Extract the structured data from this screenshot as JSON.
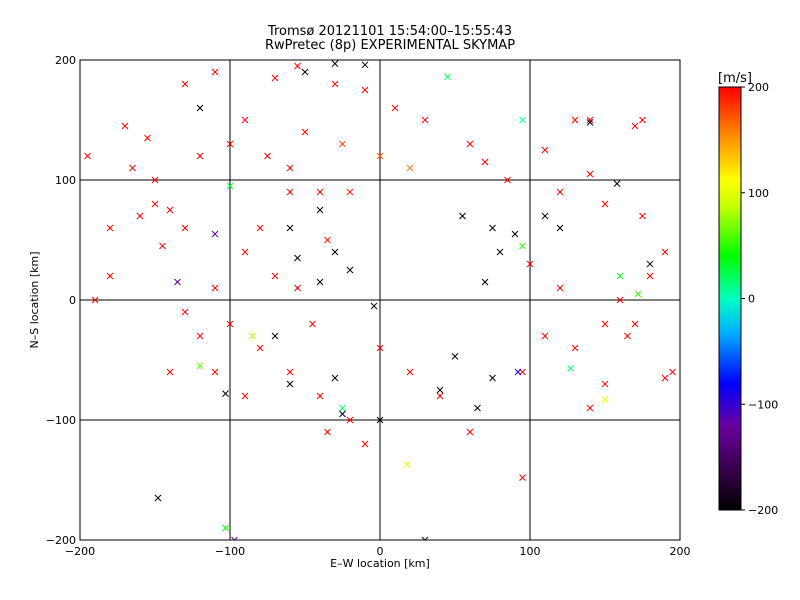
{
  "chart_data": {
    "type": "scatter",
    "title": "Tromsø 20121101 15:54:00–15:55:43",
    "subtitle": "RwPretec (8p) EXPERIMENTAL SKYMAP",
    "xlabel": "E–W location [km]",
    "ylabel": "N–S location [km]",
    "xlim": [
      -200,
      200
    ],
    "ylim": [
      -200,
      200
    ],
    "xticks": [
      -200,
      -100,
      0,
      100,
      200
    ],
    "yticks": [
      -200,
      -100,
      0,
      100,
      200
    ],
    "xtick_labels": [
      "−200",
      "−100",
      "0",
      "100",
      "200"
    ],
    "ytick_labels": [
      "−200",
      "−100",
      "0",
      "100",
      "200"
    ],
    "grid": true,
    "colorbar": {
      "label": "[m/s]",
      "min": -200,
      "max": 200,
      "ticks": [
        200,
        100,
        0,
        -100,
        -200
      ],
      "tick_labels": [
        "200",
        "100",
        "0",
        "−100",
        "−200"
      ],
      "colormap": "rainbow (black → purple → blue → cyan → green → yellow → red)"
    },
    "marker_types": [
      "dot",
      "cross"
    ],
    "points": [
      {
        "x": -150,
        "y": 100,
        "v": 200,
        "m": "x"
      },
      {
        "x": -170,
        "y": 145,
        "v": 200,
        "m": "x"
      },
      {
        "x": -165,
        "y": 110,
        "v": 200,
        "m": "x"
      },
      {
        "x": -150,
        "y": 80,
        "v": 200,
        "m": "x"
      },
      {
        "x": -140,
        "y": 75,
        "v": 200,
        "m": "x"
      },
      {
        "x": -160,
        "y": 70,
        "v": 200,
        "m": "x"
      },
      {
        "x": -180,
        "y": 60,
        "v": 200,
        "m": "x"
      },
      {
        "x": -130,
        "y": 60,
        "v": 200,
        "m": "x"
      },
      {
        "x": -145,
        "y": 45,
        "v": 200,
        "m": "x"
      },
      {
        "x": -120,
        "y": 120,
        "v": 200,
        "m": "x"
      },
      {
        "x": -100,
        "y": 130,
        "v": 200,
        "m": "x"
      },
      {
        "x": -90,
        "y": 150,
        "v": 200,
        "m": "x"
      },
      {
        "x": -75,
        "y": 120,
        "v": 200,
        "m": "x"
      },
      {
        "x": -60,
        "y": 110,
        "v": 200,
        "m": "x"
      },
      {
        "x": -50,
        "y": 140,
        "v": 200,
        "m": "x"
      },
      {
        "x": -60,
        "y": 90,
        "v": 200,
        "m": "x"
      },
      {
        "x": -40,
        "y": 90,
        "v": 200,
        "m": "x"
      },
      {
        "x": -20,
        "y": 90,
        "v": 190,
        "m": "x"
      },
      {
        "x": -80,
        "y": 60,
        "v": 200,
        "m": "x"
      },
      {
        "x": -90,
        "y": 40,
        "v": 200,
        "m": "x"
      },
      {
        "x": -70,
        "y": 20,
        "v": 200,
        "m": "x"
      },
      {
        "x": -110,
        "y": 10,
        "v": 200,
        "m": "x"
      },
      {
        "x": -100,
        "y": -20,
        "v": 200,
        "m": "x"
      },
      {
        "x": -80,
        "y": -40,
        "v": 200,
        "m": "x"
      },
      {
        "x": -60,
        "y": -60,
        "v": 200,
        "m": "x"
      },
      {
        "x": -40,
        "y": -80,
        "v": 200,
        "m": "x"
      },
      {
        "x": -20,
        "y": -100,
        "v": 200,
        "m": "x"
      },
      {
        "x": -35,
        "y": -110,
        "v": 200,
        "m": "x"
      },
      {
        "x": -140,
        "y": -60,
        "v": 200,
        "m": "x"
      },
      {
        "x": -120,
        "y": -30,
        "v": 200,
        "m": "x"
      },
      {
        "x": -180,
        "y": 20,
        "v": 200,
        "m": "x"
      },
      {
        "x": -190,
        "y": 0,
        "v": 200,
        "m": "x"
      },
      {
        "x": -195,
        "y": 120,
        "v": 200,
        "m": "x"
      },
      {
        "x": -155,
        "y": 135,
        "v": 200,
        "m": "x"
      },
      {
        "x": -130,
        "y": 180,
        "v": 200,
        "m": "x"
      },
      {
        "x": -110,
        "y": 190,
        "v": 200,
        "m": "x"
      },
      {
        "x": -70,
        "y": 185,
        "v": 200,
        "m": "x"
      },
      {
        "x": -55,
        "y": 195,
        "v": 200,
        "m": "x"
      },
      {
        "x": -30,
        "y": 180,
        "v": 200,
        "m": "x"
      },
      {
        "x": -10,
        "y": 175,
        "v": 200,
        "m": "x"
      },
      {
        "x": 10,
        "y": 160,
        "v": 200,
        "m": "x"
      },
      {
        "x": 30,
        "y": 150,
        "v": 200,
        "m": "x"
      },
      {
        "x": -25,
        "y": 130,
        "v": 180,
        "m": "x"
      },
      {
        "x": 0,
        "y": 120,
        "v": 170,
        "m": "x"
      },
      {
        "x": 20,
        "y": 110,
        "v": 160,
        "m": "x"
      },
      {
        "x": 60,
        "y": 130,
        "v": 200,
        "m": "x"
      },
      {
        "x": 70,
        "y": 115,
        "v": 200,
        "m": "x"
      },
      {
        "x": 85,
        "y": 100,
        "v": 200,
        "m": "x"
      },
      {
        "x": 110,
        "y": 125,
        "v": 200,
        "m": "x"
      },
      {
        "x": 130,
        "y": 150,
        "v": 200,
        "m": "x"
      },
      {
        "x": 140,
        "y": 150,
        "v": 200,
        "m": "x"
      },
      {
        "x": 170,
        "y": 145,
        "v": 200,
        "m": "x"
      },
      {
        "x": 175,
        "y": 150,
        "v": 200,
        "m": "x"
      },
      {
        "x": 140,
        "y": 105,
        "v": 200,
        "m": "x"
      },
      {
        "x": 120,
        "y": 90,
        "v": 200,
        "m": "x"
      },
      {
        "x": 150,
        "y": 80,
        "v": 200,
        "m": "x"
      },
      {
        "x": 175,
        "y": 70,
        "v": 200,
        "m": "x"
      },
      {
        "x": 190,
        "y": 40,
        "v": 200,
        "m": "x"
      },
      {
        "x": 180,
        "y": 20,
        "v": 200,
        "m": "x"
      },
      {
        "x": 160,
        "y": 0,
        "v": 200,
        "m": "x"
      },
      {
        "x": 170,
        "y": -20,
        "v": 200,
        "m": "x"
      },
      {
        "x": 165,
        "y": -30,
        "v": 200,
        "m": "x"
      },
      {
        "x": 150,
        "y": -20,
        "v": 200,
        "m": "x"
      },
      {
        "x": 195,
        "y": -60,
        "v": 200,
        "m": "x"
      },
      {
        "x": 190,
        "y": -65,
        "v": 200,
        "m": "x"
      },
      {
        "x": 150,
        "y": -70,
        "v": 200,
        "m": "x"
      },
      {
        "x": 140,
        "y": -90,
        "v": 200,
        "m": "x"
      },
      {
        "x": 130,
        "y": -40,
        "v": 200,
        "m": "x"
      },
      {
        "x": 110,
        "y": -30,
        "v": 200,
        "m": "x"
      },
      {
        "x": 120,
        "y": 10,
        "v": 200,
        "m": "x"
      },
      {
        "x": 100,
        "y": 30,
        "v": 200,
        "m": "x"
      },
      {
        "x": 95,
        "y": -60,
        "v": 200,
        "m": "x"
      },
      {
        "x": 95,
        "y": -148,
        "v": 200,
        "m": "x"
      },
      {
        "x": 60,
        "y": -110,
        "v": 200,
        "m": "x"
      },
      {
        "x": 40,
        "y": -80,
        "v": 200,
        "m": "x"
      },
      {
        "x": 20,
        "y": -60,
        "v": 200,
        "m": "x"
      },
      {
        "x": 0,
        "y": -40,
        "v": 200,
        "m": "x"
      },
      {
        "x": -10,
        "y": -120,
        "v": 200,
        "m": "x"
      },
      {
        "x": -90,
        "y": -80,
        "v": 200,
        "m": "x"
      },
      {
        "x": -110,
        "y": -60,
        "v": 200,
        "m": "x"
      },
      {
        "x": -130,
        "y": -10,
        "v": 200,
        "m": "x"
      },
      {
        "x": -45,
        "y": -20,
        "v": 200,
        "m": "x"
      },
      {
        "x": -55,
        "y": 10,
        "v": 200,
        "m": "x"
      },
      {
        "x": -35,
        "y": 50,
        "v": 190,
        "m": "x"
      },
      {
        "x": -148,
        "y": -165,
        "v": -200,
        "m": "x"
      },
      {
        "x": -103,
        "y": -78,
        "v": -200,
        "m": "x"
      },
      {
        "x": -97,
        "y": -200,
        "v": -120,
        "m": "x"
      },
      {
        "x": -103,
        "y": -190,
        "v": 40,
        "m": "x"
      },
      {
        "x": 30,
        "y": -200,
        "v": -190,
        "m": "x"
      },
      {
        "x": -30,
        "y": 197,
        "v": -190,
        "m": "x"
      },
      {
        "x": -10,
        "y": 196,
        "v": -200,
        "m": "x"
      },
      {
        "x": -50,
        "y": 190,
        "v": -200,
        "m": "x"
      },
      {
        "x": 45,
        "y": 186,
        "v": 20,
        "m": "x"
      },
      {
        "x": -110,
        "y": 55,
        "v": -130,
        "m": "x"
      },
      {
        "x": -135,
        "y": 15,
        "v": -130,
        "m": "x"
      },
      {
        "x": -100,
        "y": 95,
        "v": 30,
        "m": "x"
      },
      {
        "x": -120,
        "y": 160,
        "v": -200,
        "m": "x"
      },
      {
        "x": 95,
        "y": 150,
        "v": 10,
        "m": "x"
      },
      {
        "x": 92,
        "y": -60,
        "v": -90,
        "m": "x"
      },
      {
        "x": 127,
        "y": -57,
        "v": 20,
        "m": "x"
      },
      {
        "x": 150,
        "y": -83,
        "v": 100,
        "m": "x"
      },
      {
        "x": 158,
        "y": 97,
        "v": -200,
        "m": "x"
      },
      {
        "x": 140,
        "y": 148,
        "v": -200,
        "m": "x"
      },
      {
        "x": -25,
        "y": -90,
        "v": 20,
        "m": "x"
      },
      {
        "x": -25,
        "y": -95,
        "v": -200,
        "m": "x"
      },
      {
        "x": -4,
        "y": -5,
        "v": -190,
        "m": "x"
      },
      {
        "x": 0,
        "y": -100,
        "v": -190,
        "m": "x"
      },
      {
        "x": 18,
        "y": -137,
        "v": 100,
        "m": "x"
      },
      {
        "x": 50,
        "y": -47,
        "v": -200,
        "m": "x"
      },
      {
        "x": 40,
        "y": -75,
        "v": -200,
        "m": "x"
      },
      {
        "x": -70,
        "y": -30,
        "v": -200,
        "m": "x"
      },
      {
        "x": -60,
        "y": -70,
        "v": -200,
        "m": "x"
      },
      {
        "x": -30,
        "y": -65,
        "v": -190,
        "m": "x"
      },
      {
        "x": 65,
        "y": -90,
        "v": -200,
        "m": "x"
      },
      {
        "x": 75,
        "y": -65,
        "v": -200,
        "m": "x"
      },
      {
        "x": 70,
        "y": 15,
        "v": -200,
        "m": "x"
      },
      {
        "x": 80,
        "y": 40,
        "v": -200,
        "m": "x"
      },
      {
        "x": 75,
        "y": 60,
        "v": -200,
        "m": "x"
      },
      {
        "x": 55,
        "y": 70,
        "v": -200,
        "m": "x"
      },
      {
        "x": 90,
        "y": 55,
        "v": -200,
        "m": "x"
      },
      {
        "x": 120,
        "y": 60,
        "v": -200,
        "m": "x"
      },
      {
        "x": 110,
        "y": 70,
        "v": -200,
        "m": "x"
      },
      {
        "x": -60,
        "y": 60,
        "v": -200,
        "m": "x"
      },
      {
        "x": -40,
        "y": 75,
        "v": -200,
        "m": "x"
      },
      {
        "x": -55,
        "y": 35,
        "v": -200,
        "m": "x"
      },
      {
        "x": -30,
        "y": 40,
        "v": -200,
        "m": "x"
      },
      {
        "x": -20,
        "y": 25,
        "v": -200,
        "m": "x"
      },
      {
        "x": -40,
        "y": 15,
        "v": -200,
        "m": "x"
      },
      {
        "x": 160,
        "y": 20,
        "v": 30,
        "m": "x"
      },
      {
        "x": 172,
        "y": 5,
        "v": 50,
        "m": "x"
      },
      {
        "x": 180,
        "y": 30,
        "v": -170,
        "m": "x"
      },
      {
        "x": 95,
        "y": 45,
        "v": 50,
        "m": "x"
      },
      {
        "x": -85,
        "y": -30,
        "v": 80,
        "m": "x"
      },
      {
        "x": -120,
        "y": -55,
        "v": 60,
        "m": "x"
      }
    ]
  }
}
